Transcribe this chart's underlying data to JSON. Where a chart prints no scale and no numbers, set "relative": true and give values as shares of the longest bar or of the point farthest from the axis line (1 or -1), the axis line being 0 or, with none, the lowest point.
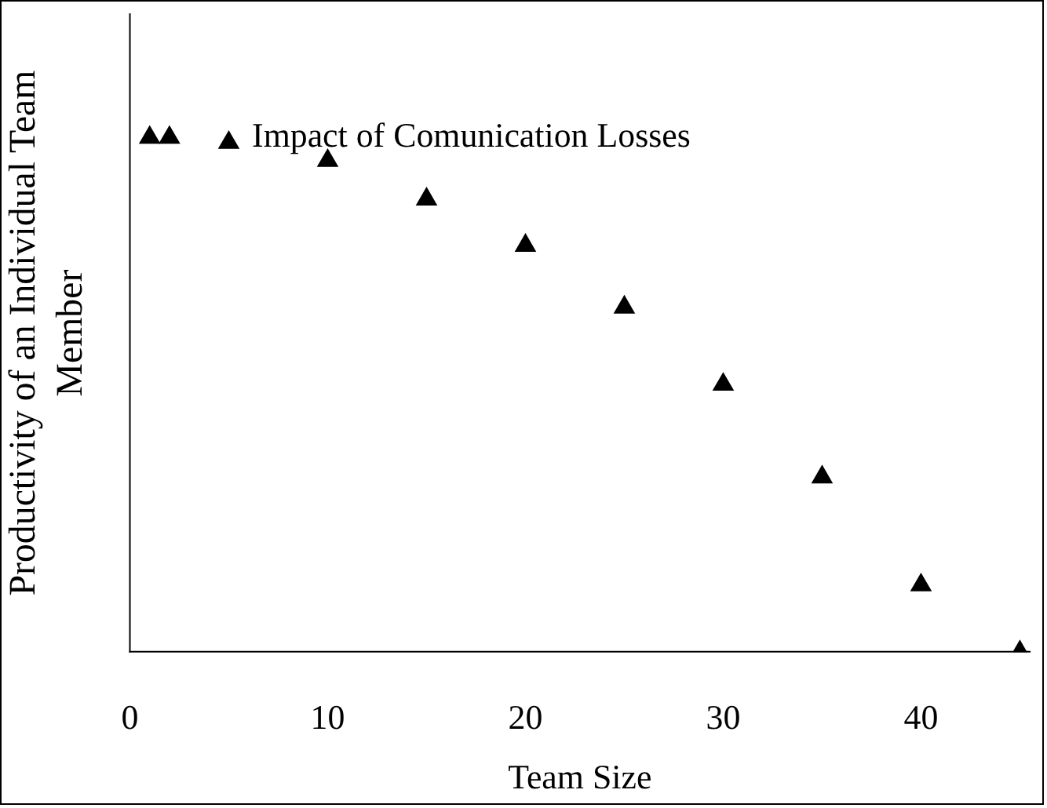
{
  "chart_data": {
    "type": "scatter",
    "title": "Impact of Comunication Losses",
    "xlabel": "Team Size",
    "ylabel": "Productivity of an Individual Team Member",
    "relative": true,
    "marker": "triangle",
    "color": "#000000",
    "x": [
      1,
      2,
      5,
      10,
      15,
      20,
      25,
      30,
      35,
      40,
      45
    ],
    "values": [
      1,
      1,
      0.99,
      0.955,
      0.88,
      0.79,
      0.67,
      0.52,
      0.34,
      0.13,
      0
    ],
    "xlim": [
      0,
      45.5
    ],
    "xticks": [
      0,
      10,
      20,
      30,
      40
    ],
    "grid": false,
    "legend": false
  }
}
